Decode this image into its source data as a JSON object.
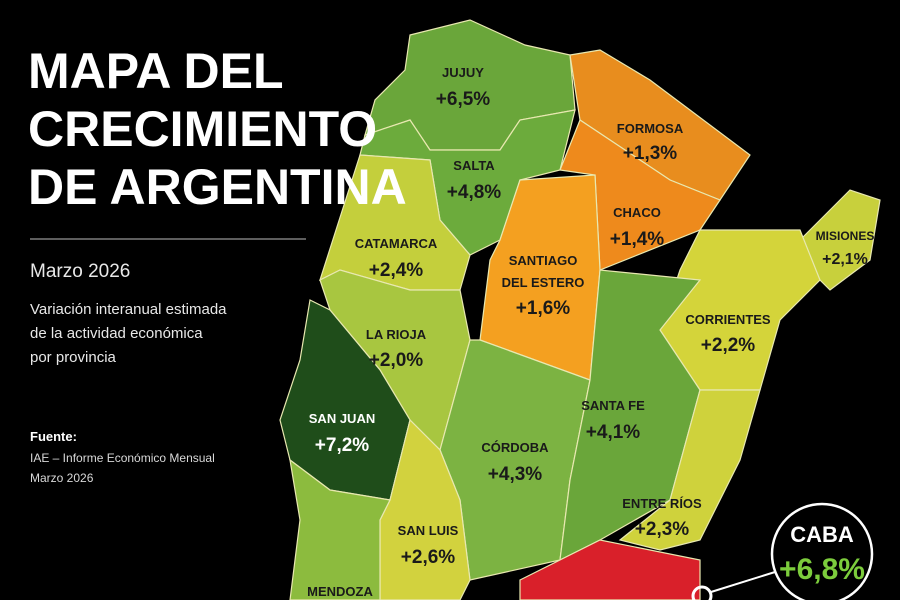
{
  "header": {
    "title_lines": [
      "MAPA DEL",
      "CRECIMIENTO",
      "DE ARGENTINA"
    ],
    "date": "Marzo 2026",
    "description": [
      "Variación interanual estimada",
      "de la actividad económica",
      "por provincia"
    ]
  },
  "source": {
    "label": "Fuente:",
    "lines": [
      "IAE – Informe Económico Mensual",
      "Marzo 2026"
    ]
  },
  "provinces": [
    {
      "name": "JUJUY",
      "value": "+6,5%"
    },
    {
      "name": "SALTA",
      "value": "+4,8%"
    },
    {
      "name": "FORMOSA",
      "value": "+1,3%"
    },
    {
      "name": "CHACO",
      "value": "+1,4%"
    },
    {
      "name": "MISIONES",
      "value": "+2,1%"
    },
    {
      "name": "CATAMARCA",
      "value": "+2,4%"
    },
    {
      "name": "SANTIAGO",
      "name2": "DEL ESTERO",
      "value": "+1,6%"
    },
    {
      "name": "CORRIENTES",
      "value": "+2,2%"
    },
    {
      "name": "LA RIOJA",
      "value": "+2,0%"
    },
    {
      "name": "SANTA FE",
      "value": "+4,1%"
    },
    {
      "name": "SAN JUAN",
      "value": "+7,2%"
    },
    {
      "name": "CÓRDOBA",
      "value": "+4,3%"
    },
    {
      "name": "ENTRE RÍOS",
      "value": "+2,3%"
    },
    {
      "name": "SAN LUIS",
      "value": "+2,6%"
    },
    {
      "name": "MENDOZA"
    }
  ],
  "caba": {
    "name": "CABA",
    "value": "+6,8%"
  }
}
